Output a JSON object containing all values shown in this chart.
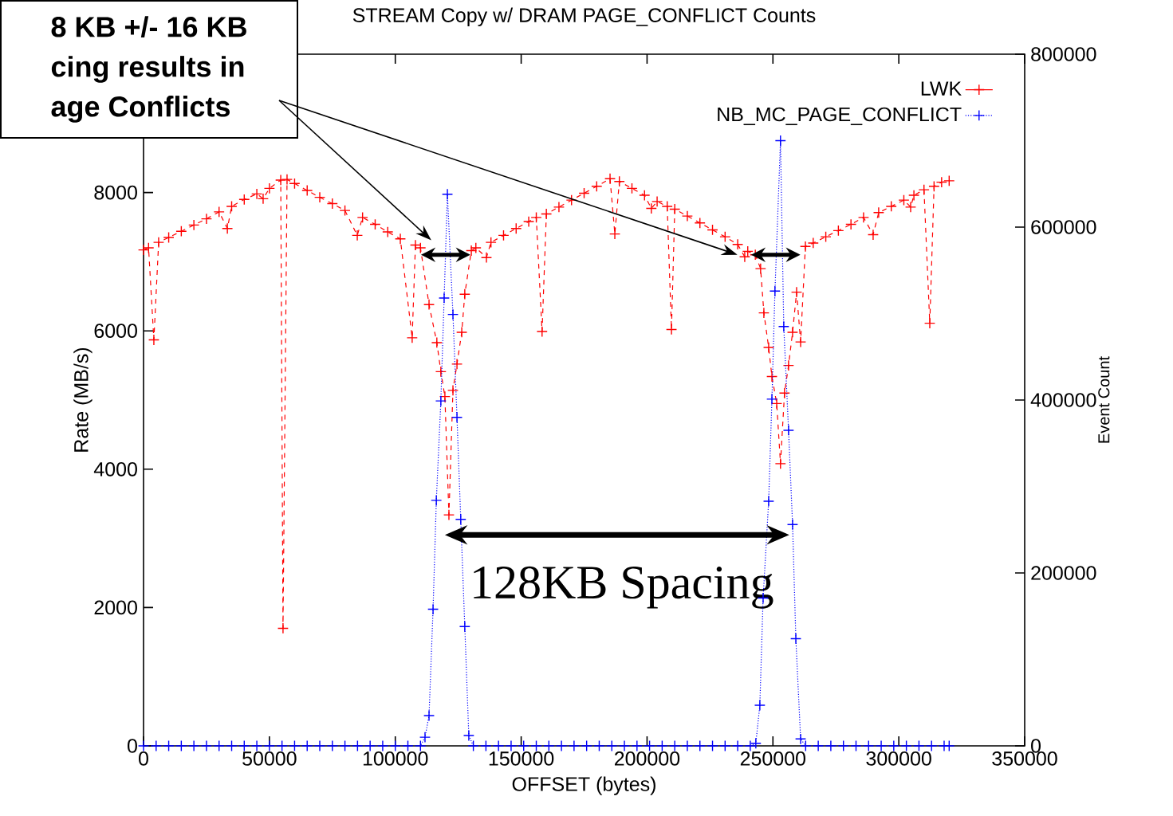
{
  "chart_data": {
    "type": "line",
    "title": "STREAM Copy w/ DRAM PAGE_CONFLICT Counts",
    "xlabel": "OFFSET (bytes)",
    "ylabel": "Rate (MB/s)",
    "y2label": "Event Count",
    "xlim": [
      0,
      350000
    ],
    "xticks": [
      0,
      50000,
      100000,
      150000,
      200000,
      250000,
      300000,
      350000
    ],
    "ylim": [
      0,
      10000
    ],
    "yticks": [
      0,
      2000,
      4000,
      6000,
      8000
    ],
    "y2lim": [
      0,
      800000
    ],
    "y2ticks": [
      0,
      200000,
      400000,
      600000,
      800000
    ],
    "legend": "top right",
    "grid": false,
    "annotations": [
      "8 KB +/- 16 KB",
      "cing results in",
      "age Conflicts",
      "128KB Spacing"
    ],
    "series": [
      {
        "name": "LWK",
        "color": "#ff0000",
        "marker": "cross",
        "line_style": "dashed",
        "x": [
          0,
          2000,
          4100,
          6000,
          10000,
          15000,
          20000,
          25000,
          30000,
          33300,
          35000,
          40000,
          45000,
          47500,
          50000,
          54500,
          55400,
          57000,
          60000,
          65000,
          70000,
          75000,
          80000,
          84900,
          87000,
          92000,
          97000,
          102000,
          106700,
          108000,
          110000,
          113400,
          116500,
          118100,
          119700,
          121300,
          122900,
          124500,
          126400,
          127600,
          130200,
          132000,
          136200,
          138000,
          143000,
          148000,
          153000,
          156000,
          158300,
          160000,
          165000,
          170000,
          175000,
          180000,
          185300,
          187200,
          189000,
          194000,
          199000,
          201700,
          204000,
          208000,
          209700,
          211000,
          216000,
          221000,
          226000,
          231000,
          236000,
          238800,
          240000,
          243000,
          245100,
          246400,
          248300,
          249600,
          251500,
          253000,
          254600,
          256200,
          257800,
          259400,
          261000,
          262900,
          266000,
          271000,
          276000,
          281000,
          286000,
          289800,
          292000,
          297000,
          302000,
          304700,
          306000,
          310000,
          312300,
          314000,
          317000,
          320000
        ],
        "values": [
          7170,
          7200,
          5870,
          7280,
          7350,
          7440,
          7530,
          7620,
          7720,
          7480,
          7800,
          7900,
          7980,
          7910,
          8060,
          8180,
          1700,
          8190,
          8130,
          8030,
          7930,
          7840,
          7740,
          7380,
          7640,
          7540,
          7430,
          7330,
          5900,
          7240,
          7200,
          6380,
          5830,
          5410,
          5050,
          3340,
          5140,
          5520,
          5980,
          6530,
          7160,
          7200,
          7060,
          7280,
          7380,
          7480,
          7580,
          7640,
          5990,
          7690,
          7790,
          7890,
          7990,
          8090,
          8200,
          7400,
          8160,
          8060,
          7960,
          7770,
          7870,
          7800,
          6020,
          7760,
          7660,
          7560,
          7460,
          7360,
          7250,
          7070,
          7150,
          7100,
          6900,
          6260,
          5760,
          5340,
          4950,
          4080,
          5100,
          5500,
          5980,
          6560,
          5840,
          7220,
          7270,
          7360,
          7450,
          7540,
          7640,
          7390,
          7710,
          7800,
          7890,
          7790,
          7960,
          8040,
          6110,
          8090,
          8150,
          8170
        ]
      },
      {
        "name": "NB_MC_PAGE_CONFLICT",
        "color": "#0000ff",
        "marker": "cross",
        "line_style": "dotted",
        "axis": "y2",
        "x": [
          0,
          5000,
          10000,
          15000,
          20000,
          25000,
          30000,
          35000,
          40000,
          45000,
          50000,
          55000,
          60000,
          65000,
          70000,
          75000,
          80000,
          85000,
          90000,
          95000,
          100000,
          105000,
          110000,
          111800,
          113400,
          115000,
          116300,
          118100,
          119400,
          120700,
          122900,
          124500,
          126000,
          127600,
          129200,
          131000,
          136000,
          141000,
          146000,
          151000,
          156000,
          161000,
          166000,
          171000,
          176000,
          181000,
          186000,
          191000,
          196000,
          201000,
          206000,
          211000,
          216000,
          221000,
          226000,
          231000,
          236000,
          241000,
          243200,
          244800,
          246100,
          248300,
          249600,
          250800,
          253000,
          254300,
          256200,
          257800,
          259100,
          261000,
          263000,
          268000,
          273000,
          278000,
          283000,
          288000,
          293000,
          298000,
          303000,
          308000,
          313000,
          318000,
          320000
        ],
        "values": [
          0,
          0,
          0,
          0,
          0,
          0,
          0,
          0,
          0,
          0,
          0,
          0,
          0,
          0,
          0,
          0,
          0,
          0,
          0,
          0,
          0,
          0,
          0,
          10000,
          35000,
          158000,
          284000,
          399000,
          518000,
          638000,
          499000,
          380000,
          262000,
          138000,
          12000,
          0,
          0,
          0,
          0,
          0,
          0,
          0,
          0,
          0,
          0,
          0,
          0,
          0,
          0,
          0,
          0,
          0,
          0,
          0,
          0,
          0,
          0,
          0,
          3000,
          47000,
          171000,
          283000,
          401000,
          526000,
          700000,
          485000,
          365000,
          256000,
          124000,
          8000,
          0,
          0,
          0,
          0,
          0,
          0,
          0,
          0,
          0,
          0,
          0,
          0,
          0
        ]
      }
    ]
  }
}
